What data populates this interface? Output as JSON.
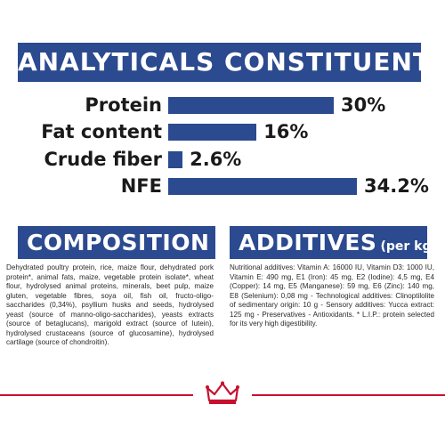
{
  "header": {
    "title": "ANALYTICALS CONSTITUENTS"
  },
  "constituents": [
    {
      "label": "Protein",
      "value_text": "30%",
      "value": 30
    },
    {
      "label": "Fat content",
      "value_text": "16%",
      "value": 16
    },
    {
      "label": "Crude fiber",
      "value_text": "2.6%",
      "value": 2.6
    },
    {
      "label": "NFE",
      "value_text": "34.2%",
      "value": 34.2
    }
  ],
  "composition": {
    "title": "COMPOSITION",
    "text": "Dehydrated poultry protein, rice, maize flour, dehydrated pork protein*, animal fats, maize, vegetable protein isolate*, wheat flour, hydrolysed animal proteins, minerals, beet pulp, maize gluten, vegetable fibres, soya oil, fish oil, fructo-oligo-saccharides (0,34%), psyllium husks and seeds, hydrolysed yeast (source of manno-oligo-saccharides), yeasts extracts (source of betaglucans), marigold extract (source of lutein), hydrolysed crustaceans (source of glucosamine), hydrolysed cartilage (source of chondroitin)."
  },
  "additives": {
    "title": "ADDITIVES",
    "title_suffix": "(per kg)",
    "text": "Nutritional additives: Vitamin A: 16000 IU, Vitamin D3: 1000 IU, Vitamin E: 490 mg, E1 (Iron): 45 mg, E2 (Iodine): 4,5 mg, E4 (Copper): 14 mg, E5 (Manganese): 59 mg, E6 (Zinc): 140 mg, E8 (Selenium): 0,08 mg - Technological additives: Clinoptilolite of sedimentary origin: 10 g - Sensory additives: Yucca extract: 125 mg - Preservatives - Antioxidants. * L.I.P.: protein selected for its very high digestibility."
  },
  "colors": {
    "brand_blue": "#2b4a8f",
    "brand_red": "#c8102e"
  },
  "logo": {
    "icon": "crown-logo-icon"
  }
}
